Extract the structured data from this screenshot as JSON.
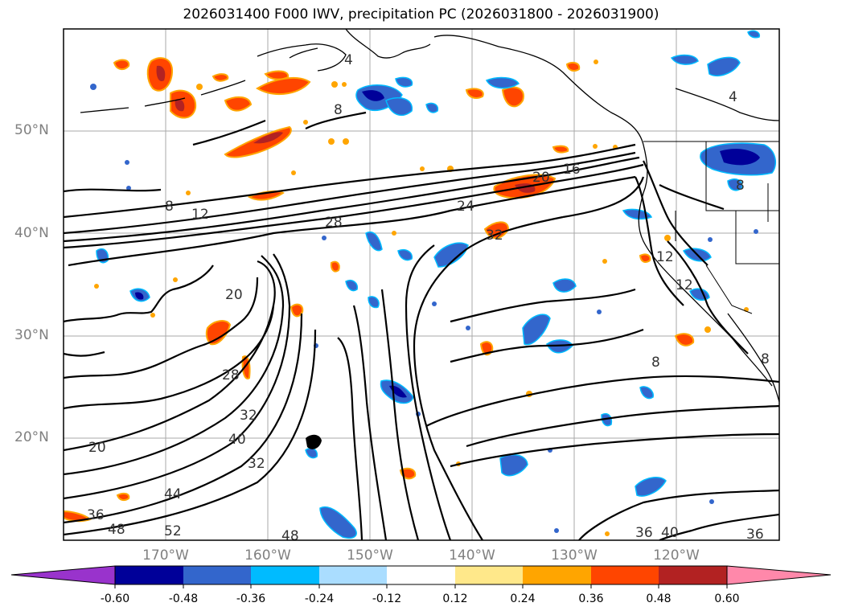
{
  "title": "2026031400 F000 IWV, precipitation PC (2026031800 - 2026031900)",
  "lat_labels": [
    "50°N",
    "40°N",
    "30°N",
    "20°N"
  ],
  "lon_labels": [
    "170°W",
    "160°W",
    "150°W",
    "140°W",
    "130°W",
    "120°W"
  ],
  "contour_labels": [
    "4",
    "8",
    "8",
    "12",
    "16",
    "20",
    "24",
    "28",
    "32",
    "20",
    "28",
    "32",
    "40",
    "32",
    "20",
    "44",
    "36",
    "48",
    "52",
    "48",
    "36",
    "40",
    "36",
    "12",
    "12",
    "8",
    "8",
    "8",
    "4"
  ],
  "colorbar": {
    "tick_labels": [
      "-0.60",
      "-0.48",
      "-0.36",
      "-0.24",
      "-0.12",
      "0.12",
      "0.24",
      "0.36",
      "0.48",
      "0.60"
    ],
    "colors": [
      "#9933cc",
      "#000099",
      "#3366cc",
      "#00bbff",
      "#aaddff",
      "#ffffff",
      "#ffe88a",
      "#ffa500",
      "#ff4500",
      "#b22222",
      "#ff88aa"
    ]
  },
  "colors": {
    "negative_dark": "#000099",
    "negative_mid": "#3366cc",
    "negative_light": "#00bbff",
    "positive_orange": "#ffa500",
    "positive_red": "#ff4500",
    "positive_dark": "#b22222",
    "contour": "#000000",
    "grid": "#aaaaaa"
  }
}
